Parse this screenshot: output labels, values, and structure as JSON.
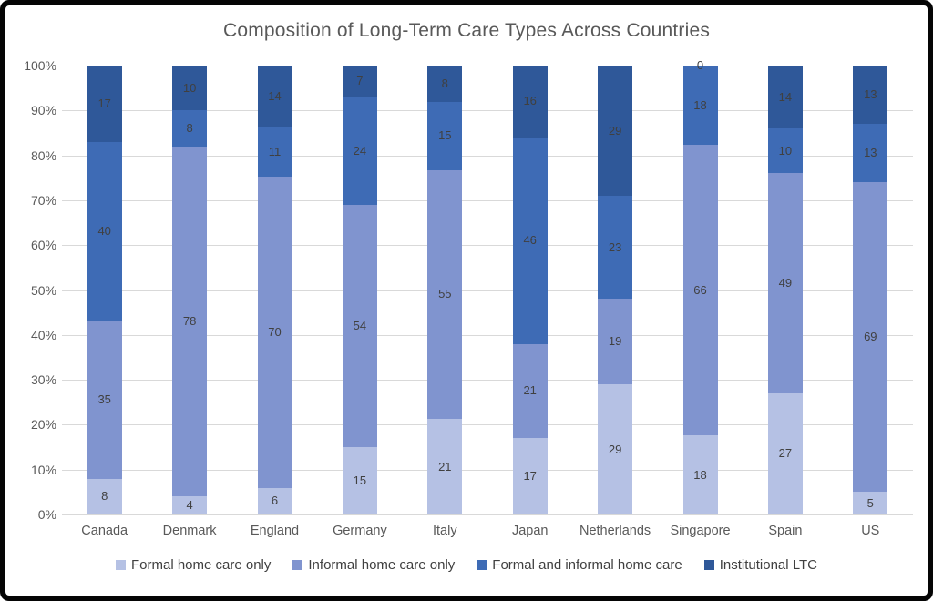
{
  "chart_data": {
    "type": "bar",
    "variant": "stacked-100-percent-column",
    "title": "Composition of Long-Term Care Types Across Countries",
    "categories": [
      "Canada",
      "Denmark",
      "England",
      "Germany",
      "Italy",
      "Japan",
      "Netherlands",
      "Singapore",
      "Spain",
      "US"
    ],
    "series": [
      {
        "name": "Formal home care only",
        "color": "#b5c1e4",
        "values": [
          8,
          4,
          6,
          15,
          21,
          17,
          29,
          18,
          27,
          5
        ]
      },
      {
        "name": "Informal home care only",
        "color": "#8094cf",
        "values": [
          35,
          78,
          70,
          54,
          55,
          21,
          19,
          66,
          49,
          69
        ]
      },
      {
        "name": "Formal and informal home care",
        "color": "#3e6bb5",
        "values": [
          40,
          8,
          11,
          24,
          15,
          46,
          23,
          18,
          10,
          13
        ]
      },
      {
        "name": "Institutional LTC",
        "color": "#2f5899",
        "values": [
          17,
          10,
          14,
          7,
          8,
          16,
          29,
          0,
          14,
          13
        ]
      }
    ],
    "y_ticks": [
      "0%",
      "10%",
      "20%",
      "30%",
      "40%",
      "50%",
      "60%",
      "70%",
      "80%",
      "90%",
      "100%"
    ],
    "ylim": [
      0,
      100
    ],
    "grid": true,
    "legend_position": "bottom",
    "colors": {
      "gridline": "#d9d9d9",
      "axis_text": "#595959",
      "data_label_text": "#404040",
      "title_text": "#595959",
      "background": "#ffffff",
      "frame_border": "#050505"
    }
  }
}
